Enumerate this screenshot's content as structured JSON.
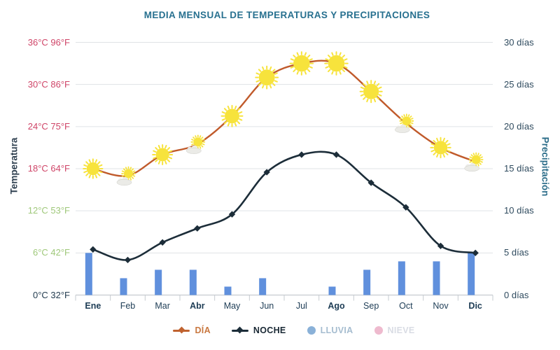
{
  "title": "MEDIA MENSUAL DE TEMPERATURAS Y PRECIPITACIONES",
  "chart_data": {
    "type": "combo line+bar",
    "categories": [
      {
        "label": "Ene",
        "bold": true
      },
      {
        "label": "Feb",
        "bold": false
      },
      {
        "label": "Mar",
        "bold": false
      },
      {
        "label": "Abr",
        "bold": true
      },
      {
        "label": "May",
        "bold": false
      },
      {
        "label": "Jun",
        "bold": false
      },
      {
        "label": "Jul",
        "bold": false
      },
      {
        "label": "Ago",
        "bold": true
      },
      {
        "label": "Sep",
        "bold": false
      },
      {
        "label": "Oct",
        "bold": false
      },
      {
        "label": "Nov",
        "bold": false
      },
      {
        "label": "Dic",
        "bold": true
      }
    ],
    "series": [
      {
        "name": "DÍA",
        "type": "line",
        "unit": "°C",
        "color": "#c05a2b",
        "values": [
          18,
          17,
          20,
          21.5,
          25.5,
          31,
          33,
          33,
          29,
          24.5,
          21,
          19
        ],
        "point_icons": [
          "sun",
          "sun-cloud",
          "sun",
          "sun-cloud",
          "sun",
          "sun",
          "sun",
          "sun",
          "sun",
          "sun-cloud",
          "sun",
          "sun-cloud"
        ]
      },
      {
        "name": "NOCHE",
        "type": "line",
        "unit": "°C",
        "color": "#1c2d39",
        "marker": "diamond",
        "values": [
          6.5,
          5,
          7.5,
          9.5,
          11.5,
          17.5,
          20,
          20,
          16,
          12.5,
          7,
          6
        ]
      },
      {
        "name": "LLUVIA",
        "type": "bar",
        "unit": "días",
        "color": "#6090dd",
        "values": [
          5,
          2,
          3,
          3,
          1,
          2,
          0,
          1,
          3,
          4,
          4,
          5
        ]
      },
      {
        "name": "NIEVE",
        "type": "bar",
        "unit": "días",
        "color": "#eebace",
        "values": [
          0,
          0,
          0,
          0,
          0,
          0,
          0,
          0,
          0,
          0,
          0,
          0
        ]
      }
    ],
    "axes": {
      "left": {
        "title": "Temperatura",
        "range": [
          0,
          36
        ],
        "step": 6,
        "ticks": [
          {
            "value": 0,
            "label": "0°C 32°F",
            "color": "#243d50"
          },
          {
            "value": 6,
            "label": "6°C 42°F",
            "color": "#9fc87a"
          },
          {
            "value": 12,
            "label": "12°C 53°F",
            "color": "#9fc87a"
          },
          {
            "value": 18,
            "label": "18°C 64°F",
            "color": "#cf4568"
          },
          {
            "value": 24,
            "label": "24°C 75°F",
            "color": "#cf4568"
          },
          {
            "value": 30,
            "label": "30°C 86°F",
            "color": "#cf4568"
          },
          {
            "value": 36,
            "label": "36°C 96°F",
            "color": "#cf4568"
          }
        ]
      },
      "right": {
        "title": "Precipitación",
        "range": [
          0,
          30
        ],
        "step": 5,
        "ticks": [
          {
            "value": 0,
            "label": "0 días"
          },
          {
            "value": 5,
            "label": "5 días"
          },
          {
            "value": 10,
            "label": "10 días"
          },
          {
            "value": 15,
            "label": "15 días"
          },
          {
            "value": 20,
            "label": "20 días"
          },
          {
            "value": 25,
            "label": "25 días"
          },
          {
            "value": 30,
            "label": "30 días"
          }
        ],
        "tick_color": "#2e4a5e"
      }
    },
    "grid": true,
    "legend_position": "bottom"
  },
  "legend": {
    "items": [
      {
        "label": "DÍA",
        "marker": "line-diamond",
        "color": "#c0622f",
        "text_color": "#c97840"
      },
      {
        "label": "NOCHE",
        "marker": "line-diamond",
        "color": "#1c2d39",
        "text_color": "#1a2935"
      },
      {
        "label": "LLUVIA",
        "marker": "circle",
        "color": "#8ab1d8",
        "text_color": "#a6bdd0"
      },
      {
        "label": "NIEVE",
        "marker": "circle",
        "color": "#eebace",
        "text_color": "#d9dce4"
      }
    ]
  },
  "colors": {
    "title": "#27708f",
    "month_label": "#1d3c55",
    "gridline": "#dfe3e6",
    "axis_line": "#c6cbd0",
    "sun": "#f7e33c",
    "cloud": "#ebebe7",
    "rain_bar": "#6090dd",
    "day_line": "#c05a2b",
    "night_line": "#1c2d39"
  }
}
